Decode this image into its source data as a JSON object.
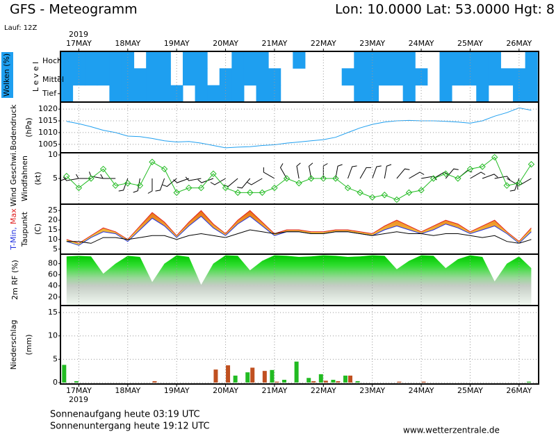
{
  "header": {
    "title": "GFS - Meteogramm",
    "location": "Lon: 10.0000 Lat: 53.0000 Hgt: 8",
    "run": "Lauf: 12Z"
  },
  "time_axis": {
    "year": "2019",
    "xlim": [
      -0.375,
      9.4
    ],
    "xticks": [
      {
        "value": 0,
        "label": "17MAY"
      },
      {
        "value": 1,
        "label": "18MAY"
      },
      {
        "value": 2,
        "label": "19MAY"
      },
      {
        "value": 3,
        "label": "20MAY"
      },
      {
        "value": 4,
        "label": "21MAY"
      },
      {
        "value": 5,
        "label": "22MAY"
      },
      {
        "value": 6,
        "label": "23MAY"
      },
      {
        "value": 7,
        "label": "24MAY"
      },
      {
        "value": 8,
        "label": "25MAY"
      },
      {
        "value": 9,
        "label": "26MAY"
      }
    ],
    "x": [
      -0.25,
      0,
      0.25,
      0.5,
      0.75,
      1,
      1.25,
      1.5,
      1.75,
      2,
      2.25,
      2.5,
      2.75,
      3,
      3.25,
      3.5,
      3.75,
      4,
      4.25,
      4.5,
      4.75,
      5,
      5.25,
      5.5,
      5.75,
      6,
      6.25,
      6.5,
      6.75,
      7,
      7.25,
      7.5,
      7.75,
      8,
      8.25,
      8.5,
      8.75,
      9,
      9.25
    ]
  },
  "chart_data": [
    {
      "type": "cloud",
      "y_label": [
        "Wolken (%)",
        "L e v e l"
      ],
      "categories": [
        "Hoch",
        "Mittel",
        "Tief"
      ],
      "color": "#1e9ff0",
      "values": [
        [
          100,
          100,
          100,
          100,
          100,
          100,
          0,
          100,
          100,
          0,
          100,
          100,
          0,
          0,
          100,
          100,
          100,
          0,
          0,
          100,
          0,
          0,
          0,
          0,
          100,
          100,
          100,
          100,
          100,
          0,
          0,
          100,
          100,
          100,
          100,
          100,
          0,
          0,
          100
        ],
        [
          100,
          100,
          100,
          100,
          100,
          100,
          100,
          100,
          100,
          0,
          100,
          100,
          0,
          100,
          100,
          100,
          100,
          100,
          0,
          0,
          0,
          0,
          0,
          100,
          100,
          100,
          100,
          100,
          100,
          100,
          0,
          100,
          100,
          100,
          100,
          100,
          100,
          100,
          100
        ],
        [
          100,
          0,
          0,
          0,
          100,
          100,
          100,
          100,
          100,
          100,
          0,
          100,
          100,
          100,
          100,
          0,
          100,
          100,
          0,
          0,
          0,
          0,
          0,
          0,
          100,
          100,
          0,
          0,
          100,
          0,
          0,
          100,
          0,
          0,
          100,
          0,
          0,
          100,
          100
        ]
      ]
    },
    {
      "type": "line",
      "y_label": [
        "Bodendruck",
        "(hPa)"
      ],
      "ylim": [
        1001.4,
        1023
      ],
      "yticks": [
        1005,
        1010,
        1015,
        1020
      ],
      "grid": true,
      "color": "#1e9ff0",
      "values": [
        1014.8,
        1013.8,
        1012.5,
        1011,
        1010,
        1008.5,
        1008.3,
        1007.5,
        1006.5,
        1006,
        1006.2,
        1005.5,
        1004.5,
        1003.5,
        1003.8,
        1004,
        1004.5,
        1004.8,
        1005.5,
        1006,
        1006.5,
        1007,
        1008,
        1010,
        1012,
        1013.5,
        1014.5,
        1015,
        1015.2,
        1015,
        1015,
        1014.8,
        1014.5,
        1014,
        1015,
        1017,
        1018.5,
        1020.5,
        1019.5
      ]
    },
    {
      "type": "wind",
      "y_label": [
        "(kt)"
      ],
      "ylim": [
        -0.45,
        10.45
      ],
      "yticks": [
        5,
        10
      ],
      "grid": false,
      "series": [
        {
          "name": "Wind Geschwi.",
          "color": "#22bb22",
          "values": [
            5.5,
            3,
            5,
            7,
            3.5,
            4,
            3.5,
            8.5,
            7,
            2,
            3,
            3,
            6,
            3,
            2,
            2,
            2,
            3,
            5,
            4,
            5,
            5,
            5,
            3,
            2,
            1,
            1.5,
            0.5,
            2,
            2.5,
            5,
            6,
            5,
            7,
            7.5,
            9.5,
            3.5,
            4,
            8
          ]
        },
        {
          "name": "Windfahnen",
          "color": "#000000",
          "values": [
            250,
            260,
            270,
            280,
            270,
            200,
            190,
            180,
            200,
            230,
            250,
            260,
            250,
            240,
            230,
            220,
            240,
            300,
            330,
            350,
            350,
            360,
            10,
            20,
            30,
            20,
            10,
            40,
            60,
            80,
            60,
            40,
            50,
            60,
            70,
            80,
            120,
            200,
            240
          ]
        }
      ]
    },
    {
      "type": "band",
      "y_label": [
        "(C)"
      ],
      "ylim": [
        2.4,
        28.3
      ],
      "yticks": [
        5,
        10,
        15,
        20,
        25
      ],
      "grid": false,
      "series": [
        {
          "name": "T-Min,",
          "color": "#2030e0",
          "values": [
            9,
            7,
            11,
            14,
            13,
            9,
            15,
            21,
            17,
            11,
            17,
            22,
            16,
            12,
            18,
            22,
            17,
            12,
            14,
            14,
            13,
            13,
            14,
            14,
            13,
            12,
            15,
            17,
            15,
            13,
            15,
            18,
            16,
            13,
            15,
            17,
            13,
            8,
            14
          ]
        },
        {
          "name": "Max",
          "color": "#e02020",
          "values": [
            10,
            8,
            12,
            16,
            14,
            10,
            17,
            24,
            19,
            12,
            19,
            25,
            18,
            13,
            20,
            25,
            19,
            13,
            15,
            15,
            14,
            14,
            15,
            15,
            14,
            13,
            17,
            20,
            17,
            14,
            17,
            20,
            18,
            14,
            17,
            20,
            14,
            9,
            16
          ]
        },
        {
          "name": "Taupunkt",
          "color": "#000000",
          "values": [
            9,
            9,
            8,
            11,
            11,
            10,
            11,
            12,
            12,
            10,
            12,
            13,
            12,
            11,
            13,
            15,
            14,
            13,
            14,
            14,
            13,
            13,
            14,
            14,
            13,
            12,
            13,
            14,
            13,
            13,
            12,
            13,
            13,
            12,
            11,
            12,
            9,
            8,
            10
          ]
        }
      ]
    },
    {
      "type": "area",
      "y_label": [
        "2m RF (%)"
      ],
      "ylim": [
        4.8,
        97
      ],
      "yticks": [
        20,
        40,
        60,
        80
      ],
      "grid": false,
      "color": "#22bb22",
      "values": [
        93,
        94,
        93,
        62,
        80,
        94,
        92,
        47,
        80,
        95,
        92,
        42,
        80,
        95,
        94,
        68,
        85,
        95,
        94,
        92,
        93,
        95,
        94,
        92,
        93,
        95,
        94,
        70,
        85,
        95,
        94,
        72,
        88,
        95,
        92,
        48,
        80,
        93,
        72
      ]
    },
    {
      "type": "bar",
      "y_label": [
        "Niederschlag",
        "(mm)"
      ],
      "ylim": [
        -0.3,
        16.5
      ],
      "yticks": [
        0,
        5,
        10,
        15
      ],
      "grid": true,
      "series": [
        {
          "color": "#22bb22",
          "values": [
            3.8,
            0.3,
            0,
            0,
            0,
            0,
            0,
            0,
            0,
            0,
            0,
            0,
            0,
            0,
            1.5,
            2.2,
            0,
            2.7,
            0.6,
            4.5,
            1,
            1.8,
            0.6,
            1.5,
            0.3,
            0,
            0,
            0,
            0,
            0,
            0,
            0,
            0,
            0,
            0,
            0,
            0,
            0,
            0.2
          ]
        },
        {
          "color": "#c05020",
          "values": [
            0,
            0,
            0,
            0,
            0,
            0,
            0,
            0.3,
            0,
            0,
            0,
            0,
            2.8,
            3.7,
            0,
            3.2,
            2.5,
            0.2,
            0,
            0,
            0.3,
            0.4,
            0.3,
            1.5,
            0,
            0,
            0,
            0.2,
            0,
            0.2,
            0,
            0,
            0,
            0,
            0,
            0,
            0,
            0,
            0
          ]
        }
      ]
    }
  ],
  "footer": {
    "sunrise": "Sonnenaufgang heute 03:19 UTC",
    "sunset": "Sonnenuntergang heute 19:12 UTC",
    "source": "www.wetterzentrale.de"
  }
}
